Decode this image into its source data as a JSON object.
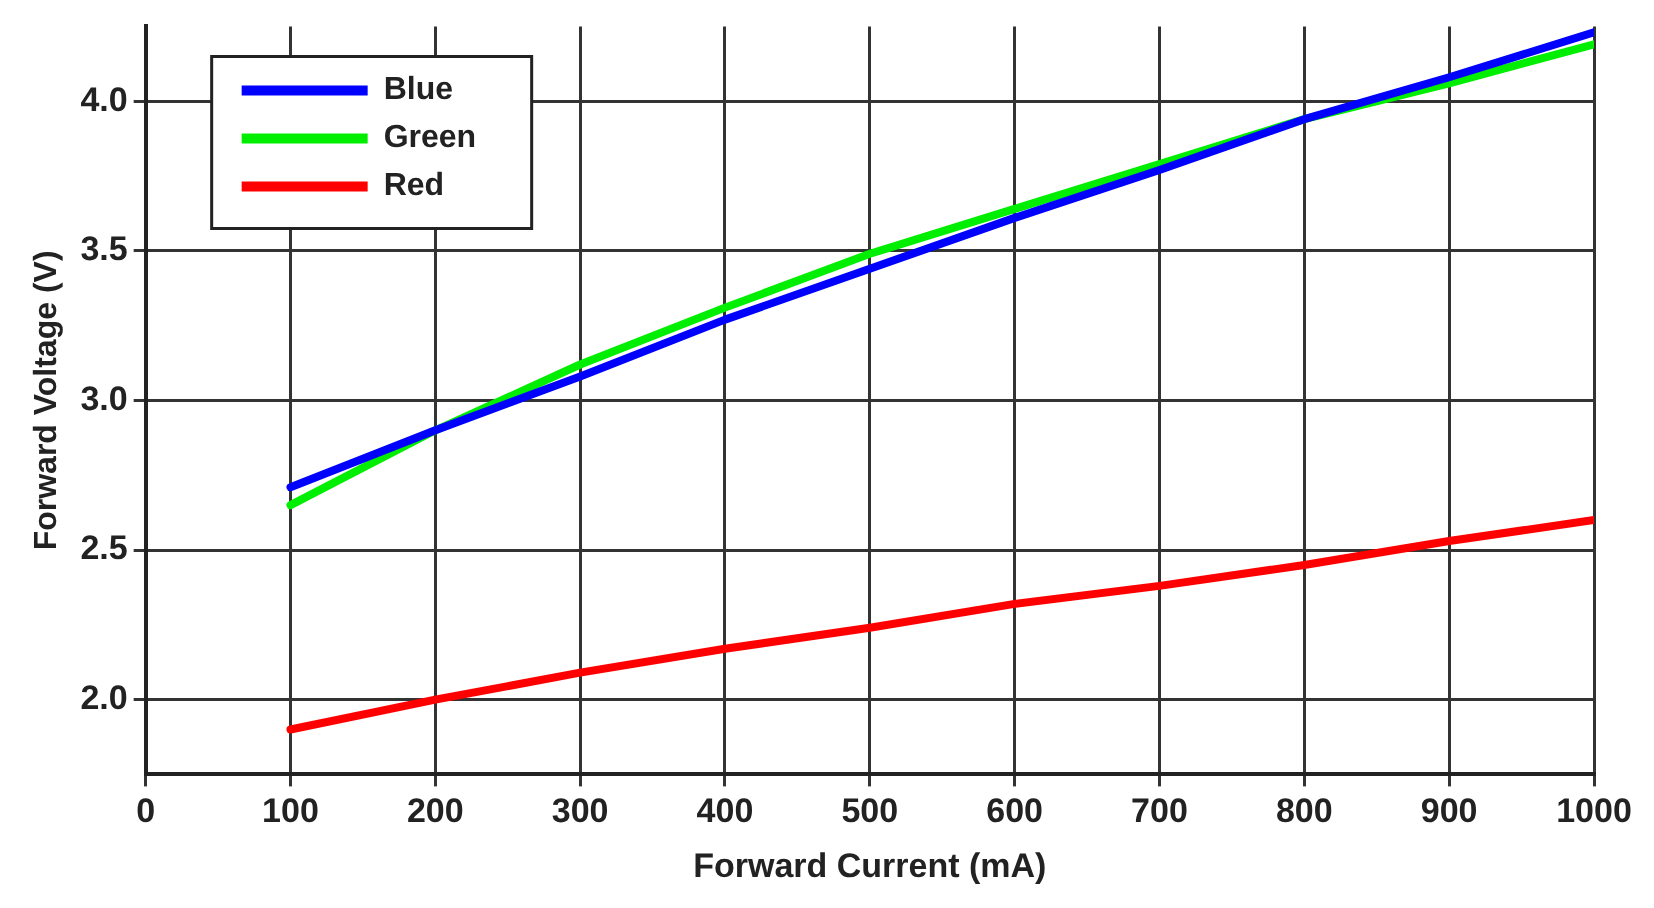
{
  "chart_data": {
    "type": "line",
    "xlabel": "Forward Current (mA)",
    "ylabel": "Forward Voltage (V)",
    "x": [
      100,
      200,
      300,
      400,
      500,
      600,
      700,
      800,
      900,
      1000
    ],
    "series": [
      {
        "name": "Blue",
        "color": "#0000ff",
        "values": [
          2.71,
          2.9,
          3.08,
          3.27,
          3.44,
          3.61,
          3.77,
          3.94,
          4.08,
          4.23
        ]
      },
      {
        "name": "Green",
        "color": "#00ee00",
        "values": [
          2.65,
          2.9,
          3.12,
          3.31,
          3.49,
          3.64,
          3.79,
          3.94,
          4.06,
          4.19
        ]
      },
      {
        "name": "Red",
        "color": "#ff0000",
        "values": [
          1.9,
          2.0,
          2.09,
          2.17,
          2.24,
          2.32,
          2.38,
          2.45,
          2.53,
          2.6
        ]
      }
    ],
    "xlim": [
      0,
      1000
    ],
    "xticks": [
      0,
      100,
      200,
      300,
      400,
      500,
      600,
      700,
      800,
      900,
      1000
    ],
    "ylim": [
      1.75,
      4.25
    ],
    "yticks": [
      {
        "value": 2,
        "label": "2.0"
      },
      {
        "value": 2.5,
        "label": "2.5"
      },
      {
        "value": 3,
        "label": "3.0"
      },
      {
        "value": 3.5,
        "label": "3.5"
      },
      {
        "value": 4,
        "label": "4.0"
      }
    ],
    "grid": true,
    "legend": "top left",
    "marker": "none",
    "line_style": "solid"
  }
}
